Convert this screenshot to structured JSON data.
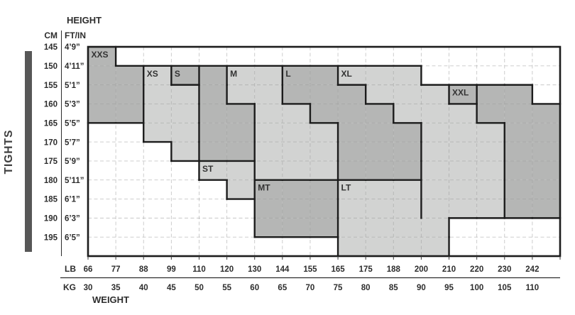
{
  "title_vertical": "TIGHTS",
  "colors": {
    "light_cell": "#d2d3d2",
    "dark_cell": "#b5b6b5",
    "bold_border": "#1c1c1c",
    "dashed_grid": "#9a9a9a",
    "side_bar": "#575757",
    "text_dark": "#2d2d2d",
    "text_label": "#333333"
  },
  "chart_data": {
    "type": "heatmap",
    "title": "TIGHTS",
    "description": "Apparel size chart: height vs weight grid with stepped size regions; 2=dark shaded cell, 1=light shaded cell, 0=unshaded",
    "x_axis": {
      "label": "WEIGHT",
      "lb_header": "LB",
      "kg_header": "KG",
      "lb": [
        "66",
        "77",
        "88",
        "99",
        "110",
        "120",
        "130",
        "144",
        "155",
        "165",
        "175",
        "188",
        "200",
        "210",
        "220",
        "230",
        "242"
      ],
      "kg": [
        "30",
        "35",
        "40",
        "45",
        "50",
        "55",
        "60",
        "65",
        "70",
        "75",
        "80",
        "85",
        "90",
        "95",
        "100",
        "105",
        "110"
      ]
    },
    "y_axis": {
      "label": "HEIGHT",
      "cm_header": "CM",
      "ftin_header": "FT/IN",
      "cm": [
        "145",
        "150",
        "155",
        "160",
        "165",
        "170",
        "175",
        "180",
        "185",
        "190",
        "195"
      ],
      "ftin": [
        "4’9”",
        "4’11”",
        "5’1”",
        "5’3”",
        "5’5”",
        "5’7”",
        "5’9”",
        "5’11”",
        "6’1”",
        "6’3”",
        "6’5”"
      ]
    },
    "cell_legend": {
      "0": "empty",
      "1": "light",
      "2": "dark"
    },
    "cells": [
      "20000000000000000",
      "22122112211100000",
      "22112112221112220",
      "22112211222111222",
      "00112211122211122",
      "00012211122211122",
      "00001111122211122",
      "00000122211111122",
      "00000022211111122",
      "00000022211110000",
      "00000000011110000"
    ],
    "size_labels": [
      {
        "label": "XXS",
        "col": 0,
        "row": 0
      },
      {
        "label": "XS",
        "col": 2,
        "row": 1
      },
      {
        "label": "S",
        "col": 3,
        "row": 1
      },
      {
        "label": "M",
        "col": 5,
        "row": 1
      },
      {
        "label": "L",
        "col": 7,
        "row": 1
      },
      {
        "label": "XL",
        "col": 9,
        "row": 1
      },
      {
        "label": "XXL",
        "col": 13,
        "row": 2
      },
      {
        "label": "ST",
        "col": 4,
        "row": 6
      },
      {
        "label": "MT",
        "col": 6,
        "row": 7
      },
      {
        "label": "LT",
        "col": 9,
        "row": 7
      }
    ],
    "extra_bold_borders": [
      {
        "col": 4,
        "row_start": 1,
        "row_end": 2
      },
      {
        "col": 14,
        "row_start": 2,
        "row_end": 3
      },
      {
        "col": 6,
        "row_start": 6,
        "row_end": 7
      },
      {
        "col": 12,
        "row_start": 7,
        "row_end": 9
      }
    ]
  }
}
